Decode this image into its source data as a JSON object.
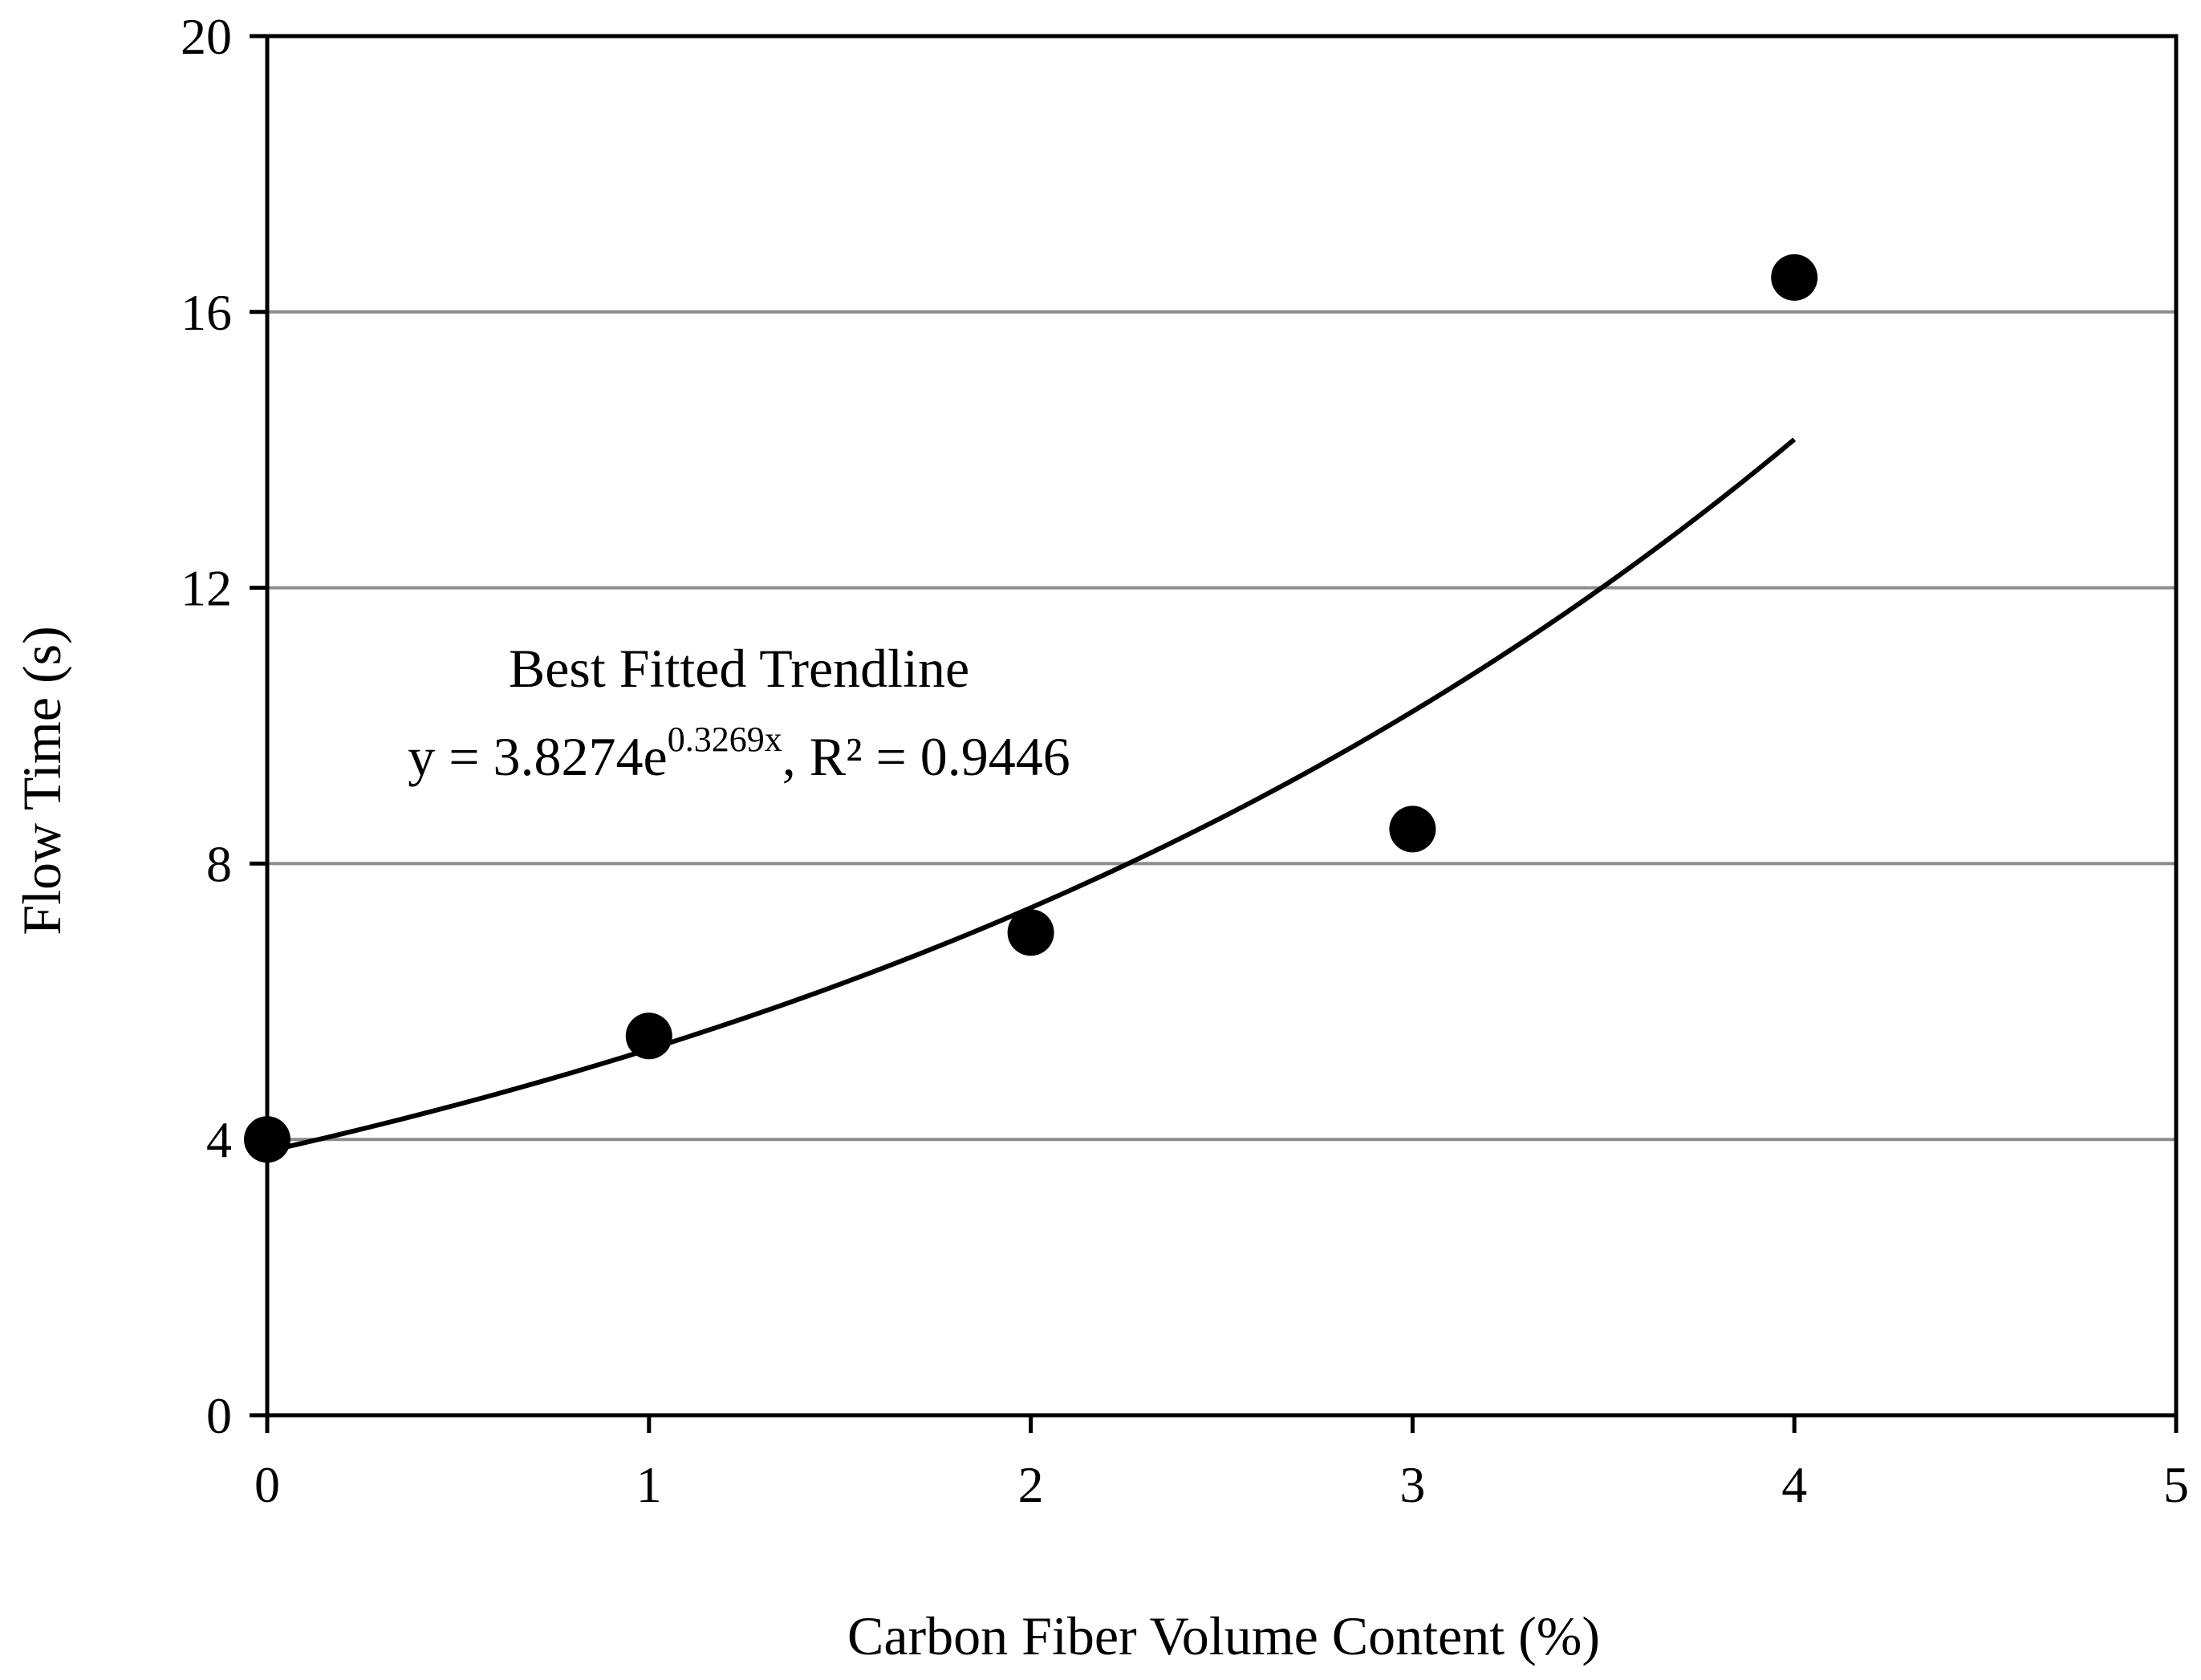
{
  "chart_data": {
    "type": "scatter",
    "title": "",
    "xlabel": "Carbon Fiber Volume Content (%)",
    "ylabel": "Flow Time (s)",
    "xlim": [
      0,
      5
    ],
    "ylim": [
      0,
      20
    ],
    "xticks": [
      "0",
      "1",
      "2",
      "3",
      "4",
      "5"
    ],
    "yticks": [
      "0",
      "4",
      "8",
      "12",
      "16",
      "20"
    ],
    "grid": "horizontal",
    "series": [
      {
        "name": "Flow Time",
        "x": [
          0,
          1,
          2,
          3,
          4
        ],
        "y": [
          4.0,
          5.5,
          7.0,
          8.5,
          16.5
        ]
      }
    ],
    "trendline": {
      "type": "exponential",
      "a": 3.8274,
      "b": 0.3269,
      "x_range": [
        0,
        4
      ]
    },
    "annotation": {
      "line1": "Best Fitted Trendline",
      "eq_prefix": "y = 3.8274e",
      "eq_exponent": "0.3269x",
      "eq_suffix": ", R² = 0.9446"
    },
    "colors": {
      "marker": "#000000",
      "trendline": "#000000",
      "grid": "#8c8c8c",
      "axis": "#000000"
    }
  }
}
